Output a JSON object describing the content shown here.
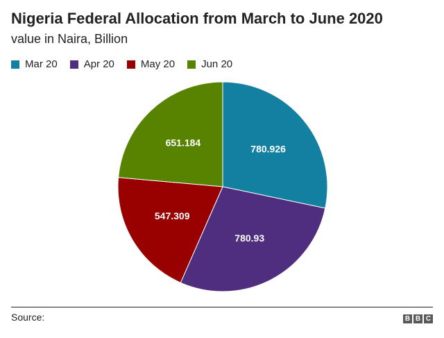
{
  "chart_data": {
    "type": "pie",
    "title": "Nigeria Federal Allocation from March to June 2020",
    "subtitle": "value in Naira, Billion",
    "categories": [
      "Mar 20",
      "Apr 20",
      "May 20",
      "Jun 20"
    ],
    "values": [
      780.926,
      780.93,
      547.309,
      651.184
    ],
    "data_labels": [
      "780.926",
      "780.93",
      "547.309",
      "651.184"
    ],
    "colors": [
      "#1380a1",
      "#4f2d7f",
      "#990000",
      "#588300"
    ],
    "legend_position": "top-left",
    "start_angle": "12 o'clock, clockwise"
  },
  "footer": {
    "source_label": "Source:",
    "logo_letters": [
      "B",
      "B",
      "C"
    ]
  }
}
